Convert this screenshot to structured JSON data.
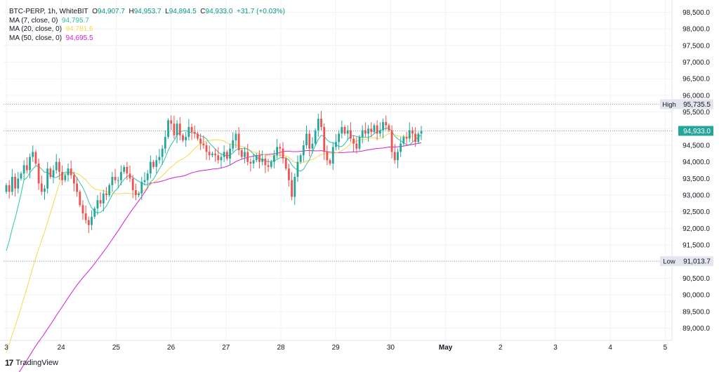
{
  "legend": {
    "symbol": "BTC-PERP, 1h, WhiteBIT",
    "o_label": "O",
    "o": "94,907.7",
    "h_label": "H",
    "h": "94,953.7",
    "l_label": "L",
    "l": "94,894.5",
    "c_label": "C",
    "c": "94,933.0",
    "change": "+31.7 (+0.03%)",
    "ma7_label": "MA (7, close, 0)",
    "ma7_value": "94,795.7",
    "ma20_label": "MA (20, close, 0)",
    "ma20_value": "94,781.6",
    "ma50_label": "MA (50, close, 0)",
    "ma50_value": "94,695.5"
  },
  "brand": {
    "mark": "17",
    "name": "TradingView"
  },
  "colors": {
    "up": "#26a69a",
    "down": "#ef5350",
    "ma7": "#2ec4a6",
    "ma20": "#f5d94a",
    "ma50": "#d11fd1",
    "price_badge": "#26a69a"
  },
  "chart_data": {
    "type": "candlestick",
    "ylim": [
      88800,
      98700
    ],
    "y_ticks": [
      {
        "value": 89000,
        "label": "89,000.0"
      },
      {
        "value": 89500,
        "label": "89,500.0"
      },
      {
        "value": 90000,
        "label": "90,000.0"
      },
      {
        "value": 90500,
        "label": "90,500.0"
      },
      {
        "value": 91000,
        "label": ""
      },
      {
        "value": 91500,
        "label": "91,500.0"
      },
      {
        "value": 92000,
        "label": "92,000.0"
      },
      {
        "value": 92500,
        "label": "92,500.0"
      },
      {
        "value": 93000,
        "label": "93,000.0"
      },
      {
        "value": 93500,
        "label": "93,500.0"
      },
      {
        "value": 94000,
        "label": "94,000.0"
      },
      {
        "value": 94500,
        "label": "94,500.0"
      },
      {
        "value": 95000,
        "label": ""
      },
      {
        "value": 95500,
        "label": "95,500.0"
      },
      {
        "value": 96000,
        "label": "96,000.0"
      },
      {
        "value": 96500,
        "label": "96,500.0"
      },
      {
        "value": 97000,
        "label": "97,000.0"
      },
      {
        "value": 97500,
        "label": "97,500.0"
      },
      {
        "value": 98000,
        "label": "98,000.0"
      },
      {
        "value": 98500,
        "label": "98,500.0"
      }
    ],
    "x_ticks": [
      "3",
      "24",
      "25",
      "26",
      "27",
      "28",
      "29",
      "30",
      "May",
      "2",
      "3",
      "4",
      "5"
    ],
    "high": {
      "label": "High",
      "value": 95735.5,
      "text": "95,735.5"
    },
    "low": {
      "label": "Low",
      "value": 91013.7,
      "text": "91,013.7"
    },
    "last": {
      "value": 94933.0,
      "text": "94,933.0"
    },
    "closes": [
      93300,
      93100,
      93550,
      93200,
      93500,
      93650,
      93900,
      93750,
      94150,
      94300,
      93950,
      93350,
      93100,
      93200,
      93800,
      93550,
      93750,
      94000,
      93700,
      93450,
      93600,
      93800,
      93600,
      93350,
      93100,
      92700,
      92450,
      92250,
      92100,
      92350,
      92600,
      92850,
      92750,
      93050,
      93000,
      93300,
      93550,
      93450,
      93450,
      93700,
      93850,
      93650,
      93500,
      93150,
      93000,
      93050,
      93400,
      93450,
      93650,
      94000,
      93850,
      94050,
      94150,
      94400,
      94750,
      95250,
      95150,
      94800,
      95150,
      94800,
      94650,
      94750,
      95050,
      94900,
      94850,
      94700,
      94550,
      94500,
      94300,
      94200,
      94250,
      94200,
      94050,
      94150,
      94300,
      94100,
      94400,
      94650,
      94850,
      94350,
      94150,
      94300,
      94000,
      93950,
      94050,
      94200,
      94000,
      94100,
      93900,
      93850,
      94000,
      94200,
      94450,
      94400,
      94100,
      93800,
      93450,
      92950,
      93550,
      94000,
      94200,
      94500,
      94850,
      94400,
      94550,
      94950,
      95300,
      95050,
      94300,
      94050,
      93950,
      94450,
      94600,
      94850,
      95050,
      94850,
      94950,
      94700,
      94550,
      94400,
      94750,
      94950,
      94850,
      95000,
      94900,
      95100,
      94850,
      94950,
      95200,
      95100,
      94950,
      94300,
      94050,
      94300,
      94550,
      94750,
      94700,
      94950,
      94850,
      94600,
      94850,
      94933
    ]
  }
}
